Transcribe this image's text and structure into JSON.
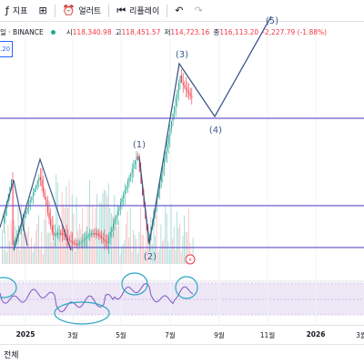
{
  "toolbar": {
    "indicators_label": "지표",
    "alert_label": "얼러트",
    "replay_label": "리플레이",
    "indicators_icon": "fx-icon",
    "layout_icon": "grid-icon",
    "alert_icon": "alarm-clock-icon",
    "replay_icon": "replay-icon",
    "undo_icon": "undo-icon",
    "redo_icon": "redo-icon"
  },
  "legend": {
    "symbol": "일 · BINANCE",
    "open_label": "시",
    "open": "118,340.98",
    "high_label": "고",
    "high": "118,451.57",
    "low_label": "저",
    "low": "114,723.16",
    "close_label": "종",
    "close": "116,113.20",
    "change": "-2,227.79 (-1.88%)",
    "status_color": "#22ab94",
    "down_color": "#f23645"
  },
  "price_box": ".20",
  "wave_labels": [
    "(1)",
    "(2)",
    "(3)",
    "(4)",
    "(5)"
  ],
  "time_axis": [
    "2025",
    "3월",
    "5월",
    "7월",
    "9월",
    "11월",
    "2026",
    "3월"
  ],
  "bottom": {
    "label": "전체"
  },
  "colors": {
    "wave_line": "#3d5a8a",
    "level_line": "#6a5acd",
    "oscillator_band": "#ede7f6",
    "candle_up": "#22ab94",
    "candle_down": "#f23645",
    "circle_annotation": "#2ba6c2"
  }
}
